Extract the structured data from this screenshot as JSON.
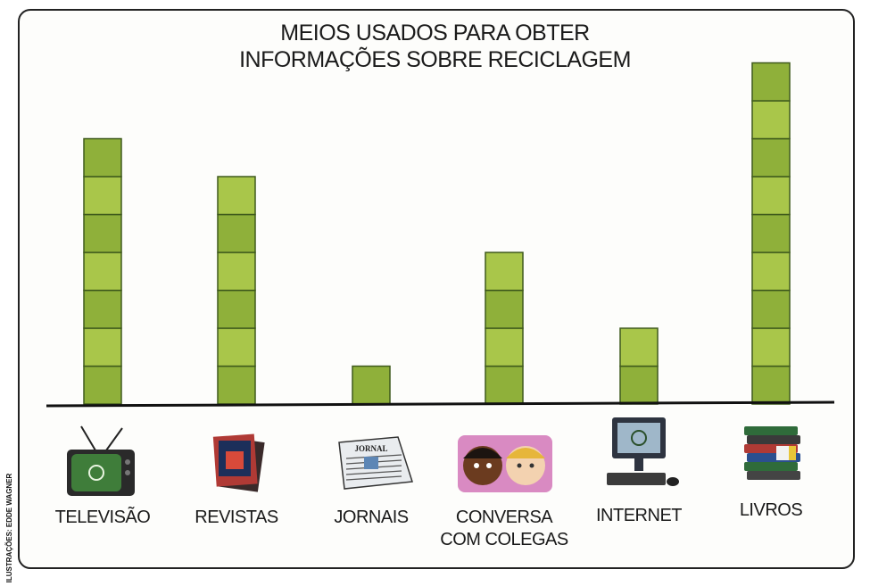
{
  "chart_data": {
    "type": "bar",
    "title": "MEIOS USADOS PARA OBTER\nINFORMAÇÕES SOBRE RECICLAGEM",
    "categories": [
      "TELEVISÃO",
      "REVISTAS",
      "JORNAIS",
      "CONVERSA COM COLEGAS",
      "INTERNET",
      "LIVROS"
    ],
    "category_lines": [
      [
        "TELEVISÃO"
      ],
      [
        "REVISTAS"
      ],
      [
        "JORNAIS"
      ],
      [
        "CONVERSA",
        "COM COLEGAS"
      ],
      [
        "INTERNET"
      ],
      [
        "LIVROS"
      ]
    ],
    "values": [
      7,
      6,
      1,
      4,
      2,
      9
    ],
    "unit": "stacked squares",
    "ylim": [
      0,
      9
    ],
    "grid": false,
    "xlabel": "",
    "ylabel": "",
    "colors": {
      "bar_fill": "#a9c64a",
      "bar_fill_dark": "#8fb03a",
      "bar_stroke": "#3f5a1c",
      "axis": "#111111"
    },
    "icons": [
      "television-icon",
      "magazines-icon",
      "newspaper-icon",
      "talking-colleagues-icon",
      "computer-icon",
      "books-icon"
    ]
  },
  "credit": "ILUSTRAÇÕES: EDDE WAGNER",
  "newspaper_masthead": "JORNAL"
}
